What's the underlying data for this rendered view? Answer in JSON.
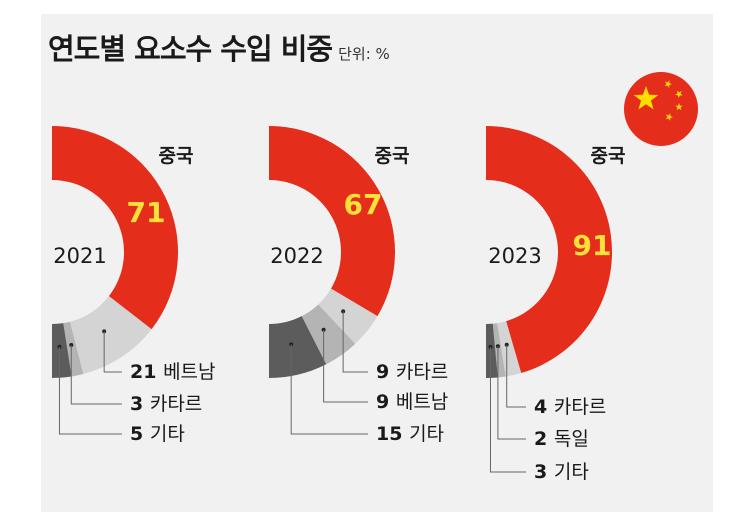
{
  "title": "연도별 요소수 수입 비중",
  "unit": "단위: %",
  "chart_data": {
    "type": "pie",
    "charts": [
      {
        "year": "2021",
        "main": {
          "name": "중국",
          "value": 71
        },
        "others": [
          {
            "name": "베트남",
            "value": 21
          },
          {
            "name": "카타르",
            "value": 3
          },
          {
            "name": "기타",
            "value": 5
          }
        ]
      },
      {
        "year": "2022",
        "main": {
          "name": "중국",
          "value": 67
        },
        "others": [
          {
            "name": "카타르",
            "value": 9
          },
          {
            "name": "베트남",
            "value": 9
          },
          {
            "name": "기타",
            "value": 15
          }
        ]
      },
      {
        "year": "2023",
        "main": {
          "name": "중국",
          "value": 91
        },
        "others": [
          {
            "name": "카타르",
            "value": 4
          },
          {
            "name": "독일",
            "value": 2
          },
          {
            "name": "기타",
            "value": 3
          }
        ]
      }
    ]
  },
  "colors": {
    "china": "#e52d1c",
    "segments": [
      "#d4d4d4",
      "#b4b4b4",
      "#5c5c5c"
    ],
    "flag_star": "#ffde00"
  },
  "flag_icon": "china-flag-icon"
}
